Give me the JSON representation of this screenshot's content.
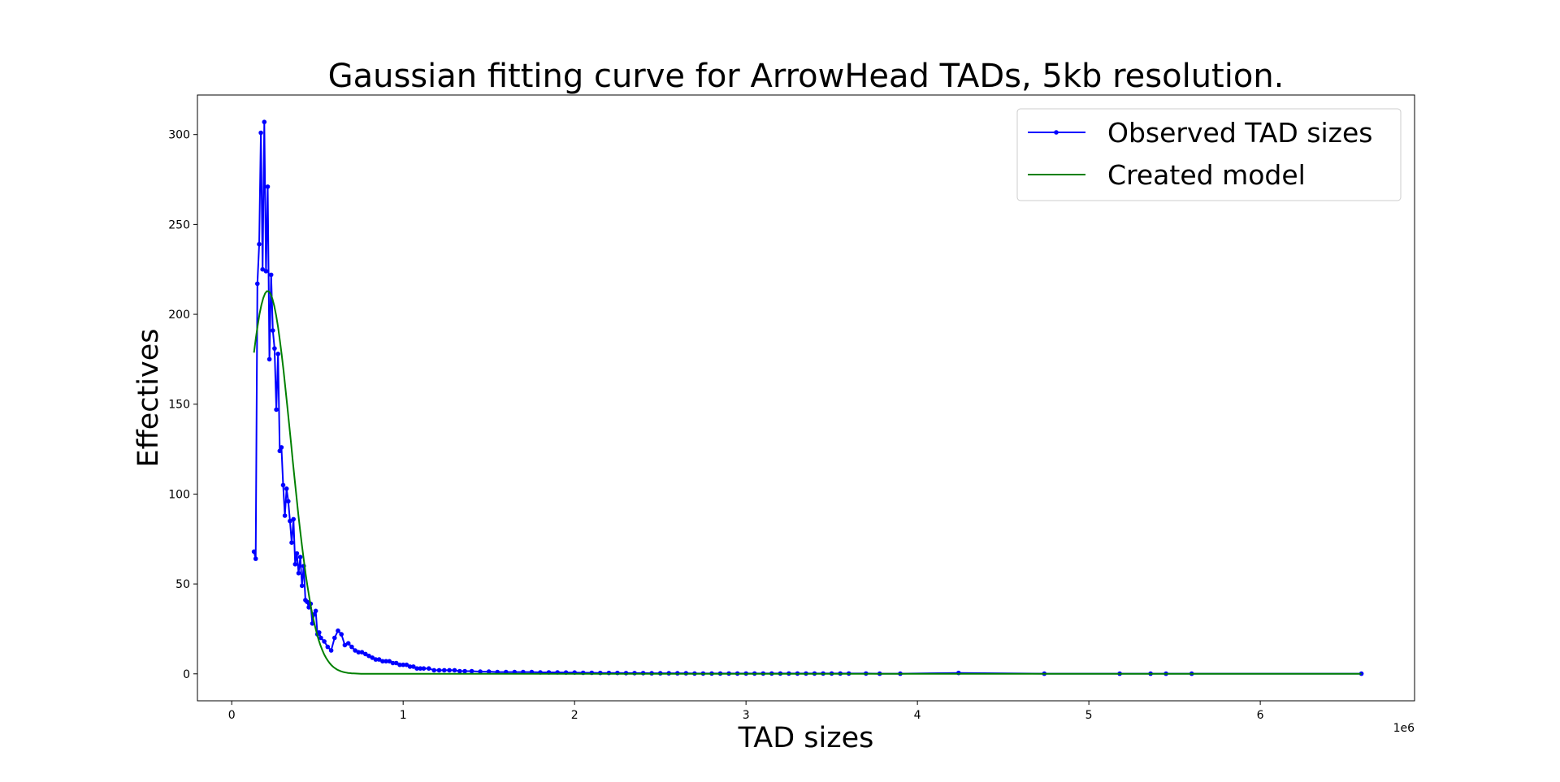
{
  "chart_data": {
    "type": "line",
    "title": "Gaussian fitting curve for ArrowHead TADs, 5kb resolution.",
    "xlabel": "TAD sizes",
    "ylabel": "Effectives",
    "x_scale_label": "1e6",
    "xlim": [
      -0.2,
      6.9
    ],
    "ylim": [
      -15,
      322
    ],
    "x_ticks": [
      0,
      1,
      2,
      3,
      4,
      5,
      6
    ],
    "x_tick_labels": [
      "0",
      "1",
      "2",
      "3",
      "4",
      "5",
      "6"
    ],
    "y_ticks": [
      0,
      50,
      100,
      150,
      200,
      250,
      300
    ],
    "y_tick_labels": [
      "0",
      "50",
      "100",
      "150",
      "200",
      "250",
      "300"
    ],
    "grid": false,
    "legend_position": "top-right",
    "series": [
      {
        "name": "Observed TAD sizes",
        "color": "#0000ff",
        "marker": "circle",
        "x": [
          0.13,
          0.14,
          0.15,
          0.16,
          0.17,
          0.18,
          0.19,
          0.2,
          0.21,
          0.22,
          0.23,
          0.24,
          0.25,
          0.26,
          0.27,
          0.28,
          0.29,
          0.3,
          0.31,
          0.32,
          0.33,
          0.34,
          0.35,
          0.36,
          0.37,
          0.38,
          0.39,
          0.4,
          0.41,
          0.42,
          0.43,
          0.44,
          0.45,
          0.46,
          0.47,
          0.48,
          0.49,
          0.5,
          0.51,
          0.52,
          0.54,
          0.56,
          0.58,
          0.6,
          0.62,
          0.64,
          0.66,
          0.68,
          0.7,
          0.72,
          0.74,
          0.76,
          0.78,
          0.8,
          0.82,
          0.84,
          0.86,
          0.88,
          0.9,
          0.92,
          0.94,
          0.96,
          0.98,
          1.0,
          1.02,
          1.04,
          1.06,
          1.08,
          1.1,
          1.12,
          1.15,
          1.18,
          1.21,
          1.24,
          1.27,
          1.3,
          1.33,
          1.36,
          1.4,
          1.45,
          1.5,
          1.55,
          1.6,
          1.65,
          1.7,
          1.75,
          1.8,
          1.85,
          1.9,
          1.95,
          2.0,
          2.05,
          2.1,
          2.15,
          2.2,
          2.25,
          2.3,
          2.35,
          2.4,
          2.45,
          2.5,
          2.55,
          2.6,
          2.65,
          2.7,
          2.75,
          2.8,
          2.85,
          2.9,
          2.95,
          3.0,
          3.05,
          3.1,
          3.15,
          3.2,
          3.25,
          3.3,
          3.35,
          3.4,
          3.45,
          3.5,
          3.55,
          3.6,
          3.7,
          3.78,
          3.9,
          4.24,
          4.74,
          5.18,
          5.36,
          5.45,
          5.6,
          6.59
        ],
        "y": [
          68,
          64,
          217,
          239,
          301,
          225,
          307,
          224,
          271,
          175,
          222,
          191,
          181,
          147,
          178,
          124,
          126,
          105,
          88,
          103,
          96,
          85,
          73,
          86,
          61,
          67,
          56,
          65,
          49,
          60,
          41,
          40,
          37,
          39,
          28,
          33,
          35,
          22,
          23,
          20,
          18,
          15,
          13,
          20,
          24,
          22,
          16,
          17,
          15,
          13,
          12,
          12,
          11,
          10,
          9,
          8,
          8,
          7,
          7,
          7,
          6,
          6,
          5,
          5,
          5,
          4,
          4,
          3,
          3,
          3,
          3,
          2,
          2,
          2,
          2,
          2,
          1.5,
          1.5,
          1.5,
          1.2,
          1.2,
          1,
          1,
          1,
          1,
          1,
          0.8,
          0.8,
          0.8,
          0.7,
          0.7,
          0.6,
          0.6,
          0.5,
          0.5,
          0.5,
          0.4,
          0.4,
          0.4,
          0.3,
          0.3,
          0.3,
          0.3,
          0.3,
          0.2,
          0.2,
          0.2,
          0.2,
          0.2,
          0.2,
          0.2,
          0.2,
          0.2,
          0.2,
          0.2,
          0.2,
          0.2,
          0.2,
          0.2,
          0.2,
          0.2,
          0.2,
          0.2,
          0.2,
          0.1,
          0.1,
          0.5,
          0.1,
          0.1,
          0.1,
          0.1,
          0.1,
          0.1
        ]
      },
      {
        "name": "Created model",
        "color": "#008000",
        "marker": "none",
        "gaussian": {
          "amplitude": 213,
          "mean": 0.21,
          "sigma": 0.135
        },
        "x_range": [
          0.13,
          6.59
        ]
      }
    ]
  }
}
